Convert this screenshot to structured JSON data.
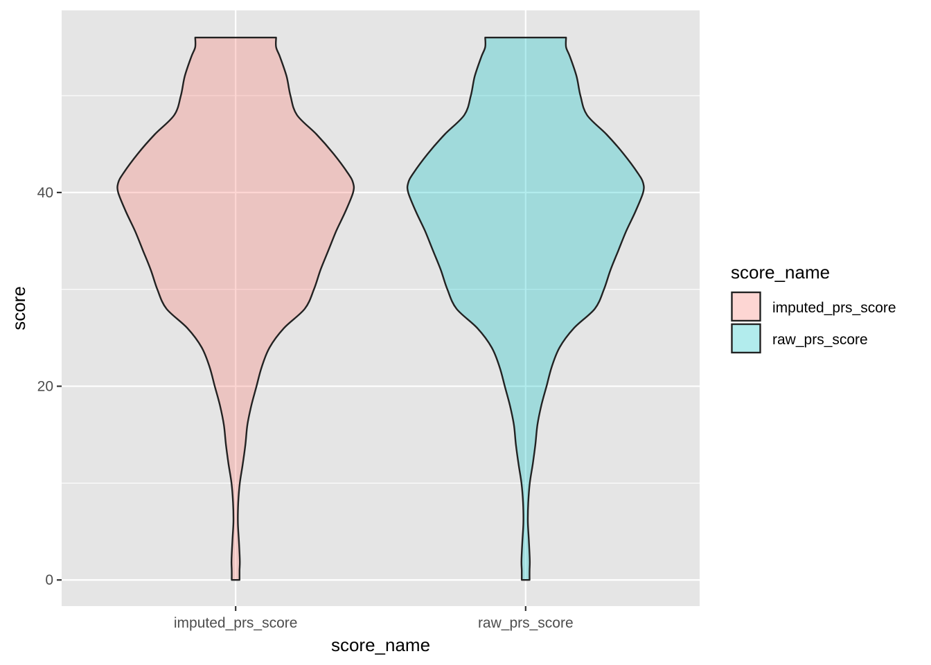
{
  "chart_data": {
    "type": "violin",
    "xlabel": "score_name",
    "ylabel": "score",
    "categories": [
      "imputed_prs_score",
      "raw_prs_score"
    ],
    "y_ticks": [
      0,
      20,
      40
    ],
    "y_tick_labels": [
      "0",
      "20",
      "40"
    ],
    "ylim": [
      -2.7,
      58.8
    ],
    "grid": true,
    "legend": {
      "title": "score_name",
      "position": "right",
      "entries": [
        "imputed_prs_score",
        "raw_prs_score"
      ]
    },
    "colors": {
      "imputed_prs_score": "#F8766D",
      "raw_prs_score": "#00BFC4",
      "panel_background": "#E5E5E5",
      "grid": "#FFFFFF",
      "outline": "#222222"
    },
    "fill_alpha": 0.3,
    "series": [
      {
        "name": "imputed_prs_score",
        "density": [
          {
            "y": 0,
            "width": 0.03
          },
          {
            "y": 1,
            "width": 0.03
          },
          {
            "y": 2,
            "width": 0.032
          },
          {
            "y": 4,
            "width": 0.025
          },
          {
            "y": 6,
            "width": 0.017
          },
          {
            "y": 8,
            "width": 0.02
          },
          {
            "y": 10,
            "width": 0.032
          },
          {
            "y": 12,
            "width": 0.055
          },
          {
            "y": 14,
            "width": 0.075
          },
          {
            "y": 16,
            "width": 0.09
          },
          {
            "y": 18,
            "width": 0.12
          },
          {
            "y": 20,
            "width": 0.16
          },
          {
            "y": 22,
            "width": 0.2
          },
          {
            "y": 24,
            "width": 0.26
          },
          {
            "y": 26,
            "width": 0.37
          },
          {
            "y": 28,
            "width": 0.53
          },
          {
            "y": 30,
            "width": 0.6
          },
          {
            "y": 32,
            "width": 0.65
          },
          {
            "y": 34,
            "width": 0.71
          },
          {
            "y": 36,
            "width": 0.77
          },
          {
            "y": 38,
            "width": 0.84
          },
          {
            "y": 40,
            "width": 0.9
          },
          {
            "y": 41,
            "width": 0.9
          },
          {
            "y": 42,
            "width": 0.86
          },
          {
            "y": 44,
            "width": 0.75
          },
          {
            "y": 46,
            "width": 0.62
          },
          {
            "y": 48,
            "width": 0.47
          },
          {
            "y": 50,
            "width": 0.42
          },
          {
            "y": 52,
            "width": 0.39
          },
          {
            "y": 54,
            "width": 0.34
          },
          {
            "y": 55,
            "width": 0.31
          },
          {
            "y": 56,
            "width": 0.31
          }
        ]
      },
      {
        "name": "raw_prs_score",
        "density": [
          {
            "y": 0,
            "width": 0.03
          },
          {
            "y": 1,
            "width": 0.03
          },
          {
            "y": 2,
            "width": 0.032
          },
          {
            "y": 4,
            "width": 0.025
          },
          {
            "y": 6,
            "width": 0.017
          },
          {
            "y": 8,
            "width": 0.02
          },
          {
            "y": 10,
            "width": 0.032
          },
          {
            "y": 12,
            "width": 0.055
          },
          {
            "y": 14,
            "width": 0.075
          },
          {
            "y": 16,
            "width": 0.09
          },
          {
            "y": 18,
            "width": 0.12
          },
          {
            "y": 20,
            "width": 0.16
          },
          {
            "y": 22,
            "width": 0.2
          },
          {
            "y": 24,
            "width": 0.26
          },
          {
            "y": 26,
            "width": 0.37
          },
          {
            "y": 28,
            "width": 0.53
          },
          {
            "y": 30,
            "width": 0.6
          },
          {
            "y": 32,
            "width": 0.65
          },
          {
            "y": 34,
            "width": 0.71
          },
          {
            "y": 36,
            "width": 0.77
          },
          {
            "y": 38,
            "width": 0.84
          },
          {
            "y": 40,
            "width": 0.9
          },
          {
            "y": 41,
            "width": 0.9
          },
          {
            "y": 42,
            "width": 0.86
          },
          {
            "y": 44,
            "width": 0.75
          },
          {
            "y": 46,
            "width": 0.62
          },
          {
            "y": 48,
            "width": 0.47
          },
          {
            "y": 50,
            "width": 0.42
          },
          {
            "y": 52,
            "width": 0.39
          },
          {
            "y": 54,
            "width": 0.34
          },
          {
            "y": 55,
            "width": 0.31
          },
          {
            "y": 56,
            "width": 0.31
          }
        ]
      }
    ]
  }
}
